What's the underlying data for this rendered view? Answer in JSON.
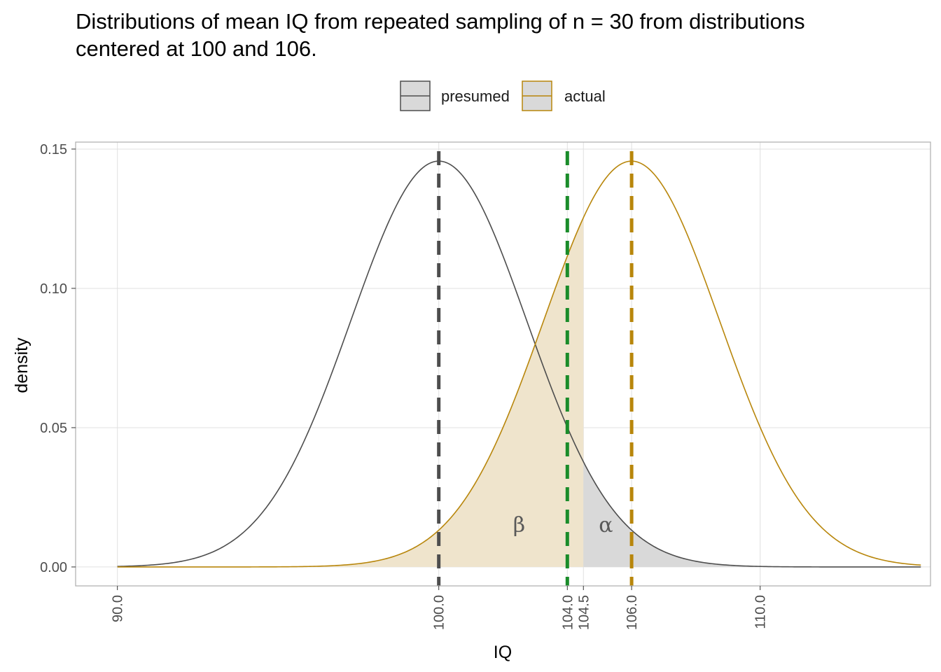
{
  "chart_data": {
    "type": "line",
    "title_lines": [
      "Distributions of mean IQ from repeated sampling of n = 30 from distributions",
      "centered at 100 and 106."
    ],
    "xlabel": "IQ",
    "ylabel": "density",
    "xlim": [
      88.7,
      115.3
    ],
    "ylim": [
      -0.0068,
      0.1525
    ],
    "x_ticks": [
      90,
      100,
      104,
      104.5,
      106,
      110
    ],
    "x_tick_labels": [
      "90.0",
      "100.0",
      "104.0",
      "104.5",
      "106.0",
      "110.0"
    ],
    "y_ticks": [
      0,
      0.05,
      0.1,
      0.15
    ],
    "y_tick_labels": [
      "0.00",
      "0.05",
      "0.10",
      "0.15"
    ],
    "grid": true,
    "legend_position": "top",
    "legend": [
      {
        "name": "presumed",
        "color": "#4d4d4d",
        "fill": "#d9d9d9"
      },
      {
        "name": "actual",
        "color": "#b8860b",
        "fill": "#efe4cc"
      }
    ],
    "series": [
      {
        "name": "presumed",
        "distribution": "normal",
        "mean": 100,
        "sd": 2.7386,
        "x_range": [
          90,
          115
        ],
        "color": "#4d4d4d"
      },
      {
        "name": "actual",
        "distribution": "normal",
        "mean": 106,
        "sd": 2.7386,
        "x_range": [
          90,
          115
        ],
        "color": "#b8860b"
      }
    ],
    "shaded_regions": [
      {
        "label": "β",
        "curve": "actual",
        "from": 90,
        "to": 104.5,
        "fill": "#efe4cc"
      },
      {
        "label": "α",
        "curve": "presumed",
        "from": 104.5,
        "to": 115,
        "fill": "#d9d9d9"
      }
    ],
    "vertical_lines": [
      {
        "x": 100,
        "color": "#4d4d4d",
        "style": "dashed"
      },
      {
        "x": 104,
        "color": "#1a8c2a",
        "style": "dashed"
      },
      {
        "x": 106,
        "color": "#b8860b",
        "style": "dashed"
      }
    ],
    "annotations": [
      {
        "text": "β",
        "x": 102.5,
        "y": 0.015
      },
      {
        "text": "α",
        "x": 105.2,
        "y": 0.015
      }
    ]
  }
}
